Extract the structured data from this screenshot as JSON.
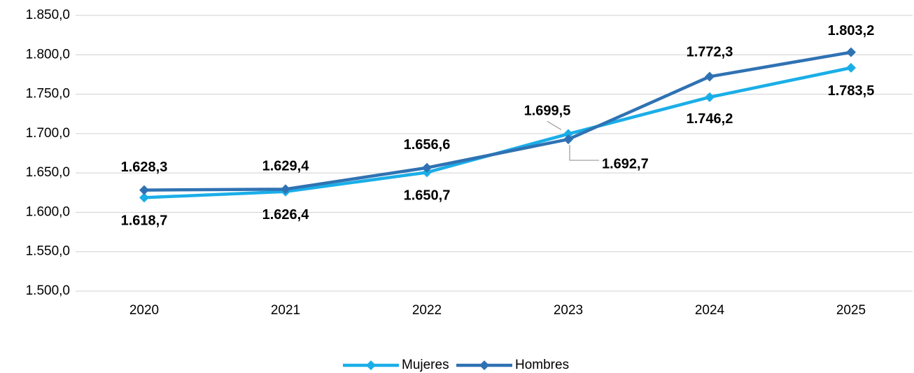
{
  "chart_data": {
    "type": "line",
    "categories": [
      "2020",
      "2021",
      "2022",
      "2023",
      "2024",
      "2025"
    ],
    "series": [
      {
        "name": "Mujeres",
        "color": "#1aaee8",
        "values": [
          1618.7,
          1626.4,
          1650.7,
          1699.5,
          1746.2,
          1783.5
        ],
        "value_labels": [
          "1.618,7",
          "1.626,4",
          "1.650,7",
          "1.699,5",
          "1.746,2",
          "1.783,5"
        ]
      },
      {
        "name": "Hombres",
        "color": "#2f72b3",
        "values": [
          1628.3,
          1629.4,
          1656.6,
          1692.7,
          1772.3,
          1803.2
        ],
        "value_labels": [
          "1.628,3",
          "1.629,4",
          "1.656,6",
          "1.692,7",
          "1.772,3",
          "1.803,2"
        ]
      }
    ],
    "ylim": [
      1500,
      1850
    ],
    "yticks": [
      {
        "value": 1500,
        "label": "1.500,0"
      },
      {
        "value": 1550,
        "label": "1.550,0"
      },
      {
        "value": 1600,
        "label": "1.600,0"
      },
      {
        "value": 1650,
        "label": "1.650,0"
      },
      {
        "value": 1700,
        "label": "1.700,0"
      },
      {
        "value": 1750,
        "label": "1.750,0"
      },
      {
        "value": 1800,
        "label": "1.800,0"
      },
      {
        "value": 1850,
        "label": "1.850,0"
      }
    ],
    "grid": true,
    "legend": "bottom"
  }
}
